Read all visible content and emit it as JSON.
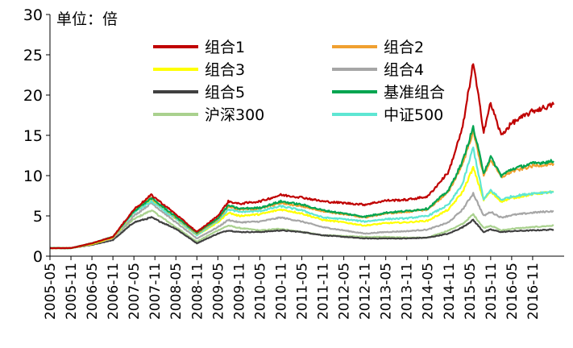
{
  "chart_data": {
    "type": "line",
    "unit_label": "单位：倍",
    "ylim": [
      0,
      30
    ],
    "yticks": [
      0,
      5,
      10,
      15,
      20,
      25,
      30
    ],
    "x_tick_labels": [
      "2005-05",
      "2005-11",
      "2006-05",
      "2006-11",
      "2007-05",
      "2007-11",
      "2008-05",
      "2008-11",
      "2009-05",
      "2009-11",
      "2010-05",
      "2010-11",
      "2011-05",
      "2011-11",
      "2012-05",
      "2012-11",
      "2013-05",
      "2013-11",
      "2014-05",
      "2014-11",
      "2015-05",
      "2015-11",
      "2016-05",
      "2016-11"
    ],
    "grid": false,
    "legend_position": "top",
    "x": [
      "2005-05",
      "2005-11",
      "2006-05",
      "2006-11",
      "2007-05",
      "2007-10",
      "2008-05",
      "2008-11",
      "2009-05",
      "2009-08",
      "2009-11",
      "2010-05",
      "2010-11",
      "2011-05",
      "2011-11",
      "2012-05",
      "2012-11",
      "2013-05",
      "2013-11",
      "2014-05",
      "2014-11",
      "2015-03",
      "2015-06",
      "2015-09",
      "2015-11",
      "2016-02",
      "2016-05",
      "2016-11",
      "2017-05"
    ],
    "series": [
      {
        "name": "组合1",
        "color": "#C00000",
        "values": [
          1.0,
          1.0,
          1.6,
          2.4,
          5.8,
          7.6,
          5.2,
          3.0,
          5.0,
          6.8,
          6.5,
          6.8,
          7.6,
          7.3,
          6.8,
          6.6,
          6.4,
          6.9,
          7.0,
          7.4,
          10.5,
          16.0,
          24.0,
          15.5,
          19.0,
          15.0,
          16.5,
          18.0,
          18.8
        ]
      },
      {
        "name": "组合2",
        "color": "#F0A030",
        "values": [
          1.0,
          1.0,
          1.6,
          2.4,
          5.6,
          7.2,
          4.8,
          2.8,
          4.6,
          6.2,
          5.8,
          5.9,
          6.6,
          6.2,
          5.6,
          5.2,
          4.8,
          5.3,
          5.5,
          5.8,
          8.0,
          11.5,
          15.5,
          10.0,
          12.0,
          9.8,
          10.5,
          11.2,
          11.5
        ]
      },
      {
        "name": "组合3",
        "color": "#FFFF00",
        "values": [
          1.0,
          1.0,
          1.5,
          2.3,
          5.4,
          7.0,
          4.6,
          2.6,
          4.2,
          5.4,
          5.0,
          5.2,
          5.8,
          5.3,
          4.5,
          4.2,
          3.8,
          4.1,
          4.2,
          4.4,
          5.8,
          8.0,
          11.0,
          7.0,
          8.0,
          6.8,
          7.2,
          7.7,
          8.0
        ]
      },
      {
        "name": "组合4",
        "color": "#A6A6A6",
        "values": [
          1.0,
          1.0,
          1.5,
          2.2,
          5.0,
          6.6,
          4.2,
          2.2,
          3.6,
          4.5,
          4.2,
          4.3,
          4.8,
          4.3,
          3.6,
          3.2,
          2.8,
          3.0,
          3.1,
          3.3,
          4.2,
          5.8,
          7.8,
          5.0,
          5.5,
          4.8,
          5.1,
          5.4,
          5.6
        ]
      },
      {
        "name": "组合5",
        "color": "#404040",
        "values": [
          1.0,
          1.0,
          1.4,
          2.0,
          4.2,
          4.8,
          3.4,
          1.6,
          2.8,
          3.2,
          3.0,
          3.0,
          3.2,
          3.0,
          2.6,
          2.4,
          2.2,
          2.2,
          2.2,
          2.3,
          2.8,
          3.6,
          4.5,
          3.0,
          3.3,
          3.0,
          3.1,
          3.2,
          3.3
        ]
      },
      {
        "name": "基准组合",
        "color": "#00A550",
        "values": [
          1.0,
          1.0,
          1.6,
          2.4,
          5.6,
          7.2,
          4.9,
          2.9,
          4.7,
          6.3,
          5.9,
          6.0,
          6.8,
          6.4,
          5.7,
          5.3,
          4.9,
          5.4,
          5.6,
          5.9,
          8.2,
          11.8,
          16.0,
          10.4,
          12.3,
          10.0,
          10.8,
          11.5,
          11.8
        ]
      },
      {
        "name": "沪深300",
        "color": "#A9D18E",
        "values": [
          1.0,
          1.0,
          1.5,
          2.3,
          4.6,
          5.7,
          3.6,
          1.8,
          3.2,
          3.8,
          3.5,
          3.2,
          3.4,
          3.0,
          2.6,
          2.5,
          2.4,
          2.4,
          2.3,
          2.3,
          3.2,
          4.0,
          5.2,
          3.5,
          3.8,
          3.2,
          3.4,
          3.6,
          3.8
        ]
      },
      {
        "name": "中证500",
        "color": "#5EE6D3",
        "values": [
          1.0,
          1.0,
          1.6,
          2.4,
          5.4,
          6.8,
          4.6,
          2.6,
          4.4,
          5.8,
          5.5,
          5.6,
          6.2,
          5.7,
          4.8,
          4.6,
          4.3,
          4.6,
          4.7,
          5.0,
          6.4,
          9.0,
          13.5,
          7.0,
          8.2,
          7.0,
          7.4,
          7.8,
          8.0
        ]
      }
    ]
  }
}
